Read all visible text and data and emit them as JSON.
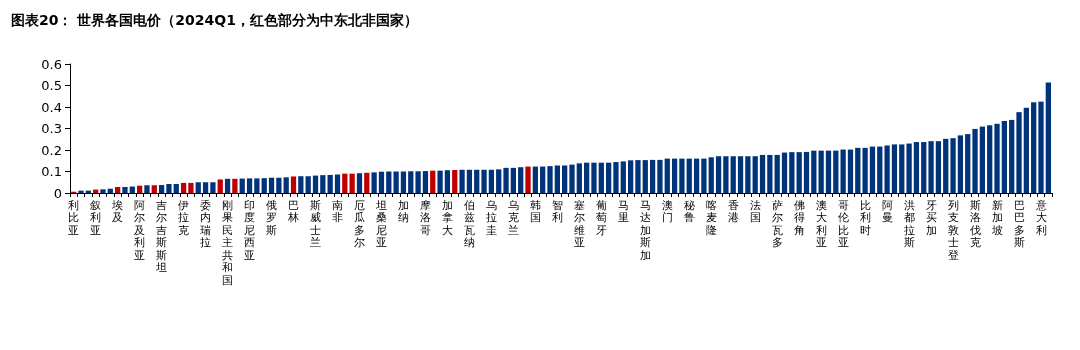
{
  "chart_data": {
    "type": "bar",
    "title": "图表20： 世界各国电价（2024Q1，红色部分为中东北非国家）",
    "categories": [
      "利比亚",
      null,
      null,
      "叙利亚",
      null,
      null,
      "埃及",
      null,
      null,
      "阿尔及利亚",
      null,
      null,
      "吉尔吉斯斯坦",
      null,
      null,
      "伊拉克",
      null,
      null,
      "委内瑞拉",
      null,
      null,
      "刚果民主共和国",
      null,
      null,
      "印度尼西亚",
      null,
      null,
      "俄罗斯",
      null,
      null,
      "巴林",
      null,
      null,
      "斯威士兰",
      null,
      null,
      "南非",
      null,
      null,
      "厄瓜多尔",
      null,
      null,
      "坦桑尼亚",
      null,
      null,
      "加纳",
      null,
      null,
      "摩洛哥",
      null,
      null,
      "加拿大",
      null,
      null,
      "伯兹瓦纳",
      null,
      null,
      "乌拉圭",
      null,
      null,
      "乌克兰",
      null,
      null,
      "韩国",
      null,
      null,
      "智利",
      null,
      null,
      "塞尔维亚",
      null,
      null,
      "葡萄牙",
      null,
      null,
      "马里",
      null,
      null,
      "马达加斯加",
      null,
      null,
      "澳门",
      null,
      null,
      "秘鲁",
      null,
      null,
      "喀麦隆",
      null,
      null,
      "香港",
      null,
      null,
      "法国",
      null,
      null,
      "萨尔瓦多",
      null,
      null,
      "佛得角",
      null,
      null,
      "澳大利亚",
      null,
      null,
      "哥伦比亚",
      null,
      null,
      "比利时",
      null,
      null,
      "阿曼",
      null,
      null,
      "洪都拉斯",
      null,
      null,
      "牙买加",
      null,
      null,
      "列支敦士登",
      null,
      null,
      "斯洛伐克",
      null,
      null,
      "新加坡",
      null,
      null,
      "巴巴多斯",
      null,
      null,
      "意大利",
      null
    ],
    "values": [
      0.006,
      0.011,
      0.011,
      0.016,
      0.017,
      0.02,
      0.028,
      0.028,
      0.03,
      0.034,
      0.036,
      0.036,
      0.037,
      0.042,
      0.042,
      0.047,
      0.047,
      0.05,
      0.05,
      0.05,
      0.063,
      0.066,
      0.066,
      0.067,
      0.068,
      0.068,
      0.069,
      0.071,
      0.071,
      0.073,
      0.077,
      0.078,
      0.078,
      0.081,
      0.083,
      0.084,
      0.086,
      0.09,
      0.09,
      0.092,
      0.094,
      0.096,
      0.099,
      0.1,
      0.1,
      0.1,
      0.101,
      0.101,
      0.102,
      0.104,
      0.104,
      0.106,
      0.107,
      0.108,
      0.108,
      0.108,
      0.108,
      0.108,
      0.11,
      0.117,
      0.117,
      0.12,
      0.123,
      0.123,
      0.123,
      0.125,
      0.128,
      0.128,
      0.132,
      0.138,
      0.141,
      0.141,
      0.141,
      0.141,
      0.144,
      0.147,
      0.152,
      0.153,
      0.153,
      0.154,
      0.154,
      0.16,
      0.16,
      0.16,
      0.16,
      0.16,
      0.16,
      0.166,
      0.171,
      0.171,
      0.171,
      0.171,
      0.171,
      0.171,
      0.177,
      0.177,
      0.177,
      0.188,
      0.19,
      0.19,
      0.191,
      0.197,
      0.197,
      0.197,
      0.197,
      0.202,
      0.202,
      0.21,
      0.21,
      0.216,
      0.216,
      0.221,
      0.226,
      0.226,
      0.23,
      0.237,
      0.237,
      0.241,
      0.241,
      0.252,
      0.255,
      0.268,
      0.274,
      0.298,
      0.309,
      0.315,
      0.322,
      0.335,
      0.34,
      0.376,
      0.397,
      0.422,
      0.425,
      0.514
    ],
    "colors": [
      "#c00000",
      "#00337a",
      "#00337a",
      "#c00000",
      "#00337a",
      "#00337a",
      "#c00000",
      "#00337a",
      "#00337a",
      "#c00000",
      "#00337a",
      "#c00000",
      "#00337a",
      "#00337a",
      "#00337a",
      "#c00000",
      "#c00000",
      "#00337a",
      "#00337a",
      "#00337a",
      "#c00000",
      "#00337a",
      "#c00000",
      "#00337a",
      "#00337a",
      "#00337a",
      "#00337a",
      "#00337a",
      "#00337a",
      "#00337a",
      "#c00000",
      "#00337a",
      "#00337a",
      "#00337a",
      "#00337a",
      "#00337a",
      "#00337a",
      "#c00000",
      "#c00000",
      "#00337a",
      "#c00000",
      "#00337a",
      "#00337a",
      "#00337a",
      "#00337a",
      "#00337a",
      "#00337a",
      "#00337a",
      "#00337a",
      "#c00000",
      "#00337a",
      "#00337a",
      "#c00000",
      "#00337a",
      "#00337a",
      "#00337a",
      "#00337a",
      "#00337a",
      "#00337a",
      "#00337a",
      "#00337a",
      "#00337a",
      "#c00000",
      "#00337a",
      "#00337a",
      "#00337a",
      "#00337a",
      "#00337a",
      "#00337a",
      "#00337a",
      "#00337a",
      "#00337a",
      "#00337a",
      "#00337a",
      "#00337a",
      "#00337a",
      "#00337a",
      "#00337a",
      "#00337a",
      "#00337a",
      "#00337a",
      "#00337a",
      "#00337a",
      "#00337a",
      "#00337a",
      "#00337a",
      "#00337a",
      "#00337a",
      "#00337a",
      "#00337a",
      "#00337a",
      "#00337a",
      "#00337a",
      "#00337a",
      "#00337a",
      "#00337a",
      "#00337a",
      "#00337a",
      "#00337a",
      "#00337a",
      "#00337a",
      "#00337a",
      "#00337a",
      "#00337a",
      "#00337a",
      "#00337a",
      "#00337a",
      "#00337a",
      "#00337a",
      "#00337a",
      "#00337a",
      "#00337a",
      "#00337a",
      "#00337a",
      "#00337a",
      "#00337a",
      "#00337a",
      "#00337a",
      "#00337a",
      "#00337a",
      "#00337a",
      "#00337a",
      "#00337a",
      "#00337a",
      "#00337a",
      "#00337a",
      "#00337a",
      "#00337a",
      "#00337a",
      "#00337a",
      "#00337a",
      "#00337a",
      "#00337a",
      "#00337a"
    ],
    "ylim": [
      0,
      0.6
    ],
    "yticks": [
      0,
      0.1,
      0.2,
      0.3,
      0.4,
      0.5,
      0.6
    ]
  }
}
